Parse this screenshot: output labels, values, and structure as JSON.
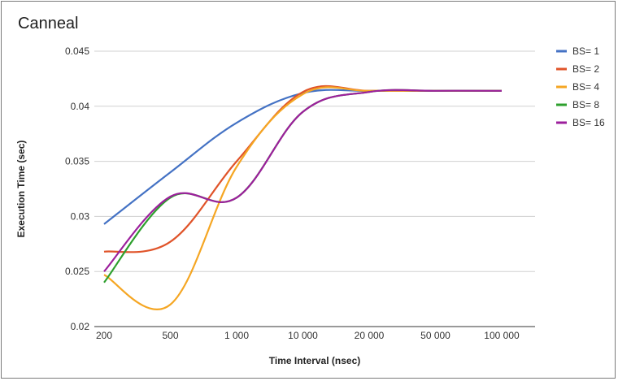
{
  "chart_data": {
    "type": "line",
    "title": "Canneal",
    "xlabel": "Time Interval (nsec)",
    "ylabel": "Execution Time (sec)",
    "categories": [
      "200",
      "500",
      "1 000",
      "10 000",
      "20 000",
      "50 000",
      "100 000"
    ],
    "ylim": [
      0.02,
      0.045
    ],
    "yticks": [
      "0.02",
      "0.025",
      "0.03",
      "0.035",
      "0.04",
      "0.045"
    ],
    "grid": true,
    "legend_position": "right",
    "series": [
      {
        "name": "BS= 1",
        "color": "#4472c4",
        "values": [
          0.0293,
          0.034,
          0.0385,
          0.0412,
          0.0414,
          0.0414,
          0.0414
        ]
      },
      {
        "name": "BS= 2",
        "color": "#e0542a",
        "values": [
          0.0268,
          0.0277,
          0.035,
          0.0413,
          0.0414,
          0.0414,
          0.0414
        ]
      },
      {
        "name": "BS= 4",
        "color": "#f5a623",
        "values": [
          0.0247,
          0.022,
          0.0345,
          0.0411,
          0.0414,
          0.0414,
          0.0414
        ]
      },
      {
        "name": "BS= 8",
        "color": "#2ea02e",
        "values": [
          0.024,
          0.0317,
          0.0317,
          0.0395,
          0.0413,
          0.0414,
          0.0414
        ]
      },
      {
        "name": "BS= 16",
        "color": "#9c1f9c",
        "values": [
          0.025,
          0.0318,
          0.0317,
          0.0395,
          0.0413,
          0.0414,
          0.0414
        ]
      }
    ]
  }
}
